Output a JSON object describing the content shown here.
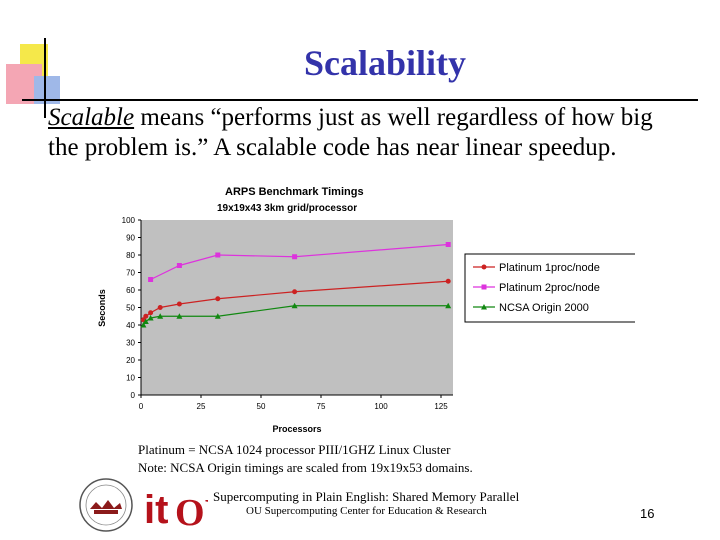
{
  "slide": {
    "title": "Scalability",
    "body_emphasis": "Scalable",
    "body_rest": " means “performs just as well regardless of how big the problem is.” A scalable code has near linear speedup.",
    "note1": "Platinum = NCSA 1024 processor PIII/1GHZ Linux Cluster",
    "note2": "Note: NCSA Origin timings are scaled from 19x19x53 domains.",
    "footer_line1": "Supercomputing in Plain English: Shared Memory Parallel",
    "footer_line2": "OU Supercomputing Center for Education & Research",
    "page_number": "16"
  },
  "logo": {
    "left_text": "it",
    "right_text": "OU",
    "colors": {
      "it": "#b5121b",
      "ou": "#b5121b"
    }
  },
  "chart_data": {
    "type": "line",
    "title": "ARPS Benchmark Timings",
    "subtitle": "19x19x43 3km grid/processor",
    "xlabel": "Processors",
    "ylabel": "Seconds",
    "xlim": [
      0,
      130
    ],
    "ylim": [
      0,
      100
    ],
    "x_ticks": [
      "0",
      "25",
      "50",
      "75",
      "100",
      "125"
    ],
    "y_ticks": [
      "0",
      "10",
      "20",
      "30",
      "40",
      "50",
      "60",
      "70",
      "80",
      "90",
      "100"
    ],
    "legend_position": "right",
    "series": [
      {
        "name": "Platinum 1proc/node",
        "color": "#cc2222",
        "marker": "circle",
        "x": [
          1,
          2,
          4,
          8,
          16,
          32,
          64,
          128
        ],
        "y": [
          43,
          45,
          47,
          50,
          52,
          55,
          59,
          65
        ]
      },
      {
        "name": "Platinum 2proc/node",
        "color": "#dd33dd",
        "marker": "square",
        "x": [
          4,
          16,
          32,
          64,
          128
        ],
        "y": [
          66,
          74,
          80,
          79,
          86
        ]
      },
      {
        "name": "NCSA Origin 2000",
        "color": "#118811",
        "marker": "triangle",
        "x": [
          1,
          2,
          4,
          8,
          16,
          32,
          64,
          128
        ],
        "y": [
          40,
          42,
          44,
          45,
          45,
          45,
          51,
          51
        ]
      }
    ]
  }
}
